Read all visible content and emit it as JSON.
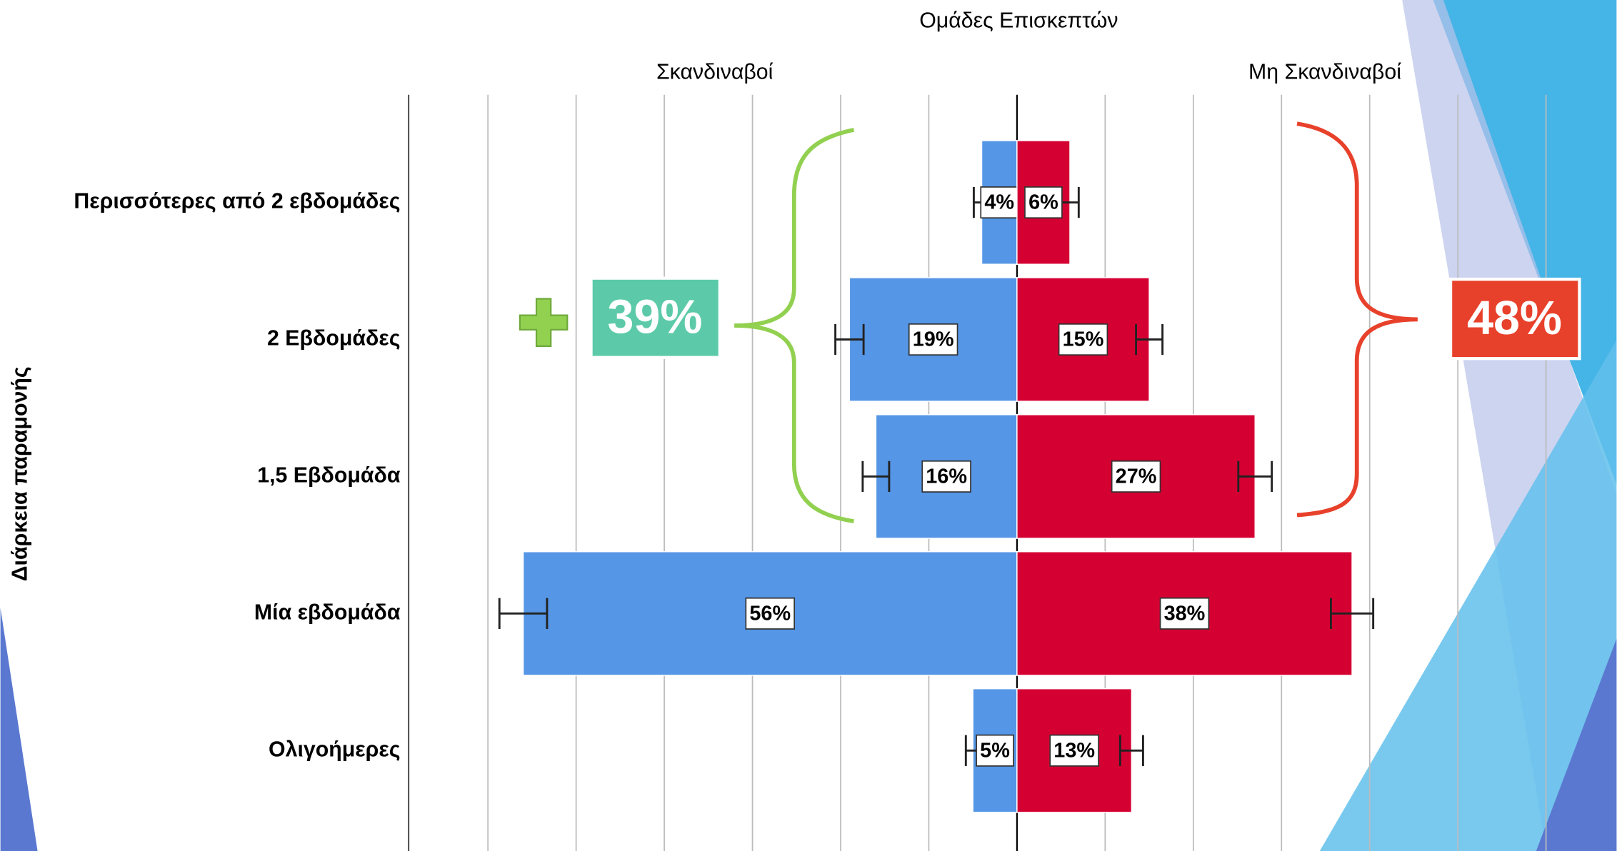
{
  "chart_data": {
    "type": "butterfly",
    "title": "Ομάδες Επισκεπτών",
    "y_label": "Διάρκεια παραμονής",
    "categories": [
      "Περισσότερες από 2 εβδομάδες",
      "2 Εβδομάδες",
      "1,5 Εβδομάδα",
      "Μία εβδομάδα",
      "Ολιγοήμερες"
    ],
    "series": [
      {
        "name": "Σκανδιναβοί",
        "color": "#5596e6",
        "side": "left",
        "values": [
          4,
          19,
          16,
          56,
          5
        ],
        "value_labels": [
          "4%",
          "19%",
          "16%",
          "56%",
          "5%"
        ],
        "errors": [
          0.9,
          1.6,
          1.5,
          2.7,
          0.8
        ]
      },
      {
        "name": "Μη Σκανδιναβοί",
        "color": "#d50032",
        "side": "right",
        "values": [
          6,
          15,
          27,
          38,
          13
        ],
        "value_labels": [
          "6%",
          "15%",
          "27%",
          "38%",
          "13%"
        ],
        "errors": [
          1.0,
          1.5,
          1.9,
          2.4,
          1.3
        ]
      }
    ],
    "xlim": [
      -69,
      68
    ],
    "xticks": [
      -60,
      -50,
      -40,
      -30,
      -20,
      -10,
      0,
      10,
      20,
      30,
      40,
      50,
      60
    ],
    "grid": true,
    "annotations": [
      {
        "text": "39%",
        "color": "#5ccaa9"
      },
      {
        "text": "48%",
        "color": "#e8412b"
      }
    ]
  }
}
